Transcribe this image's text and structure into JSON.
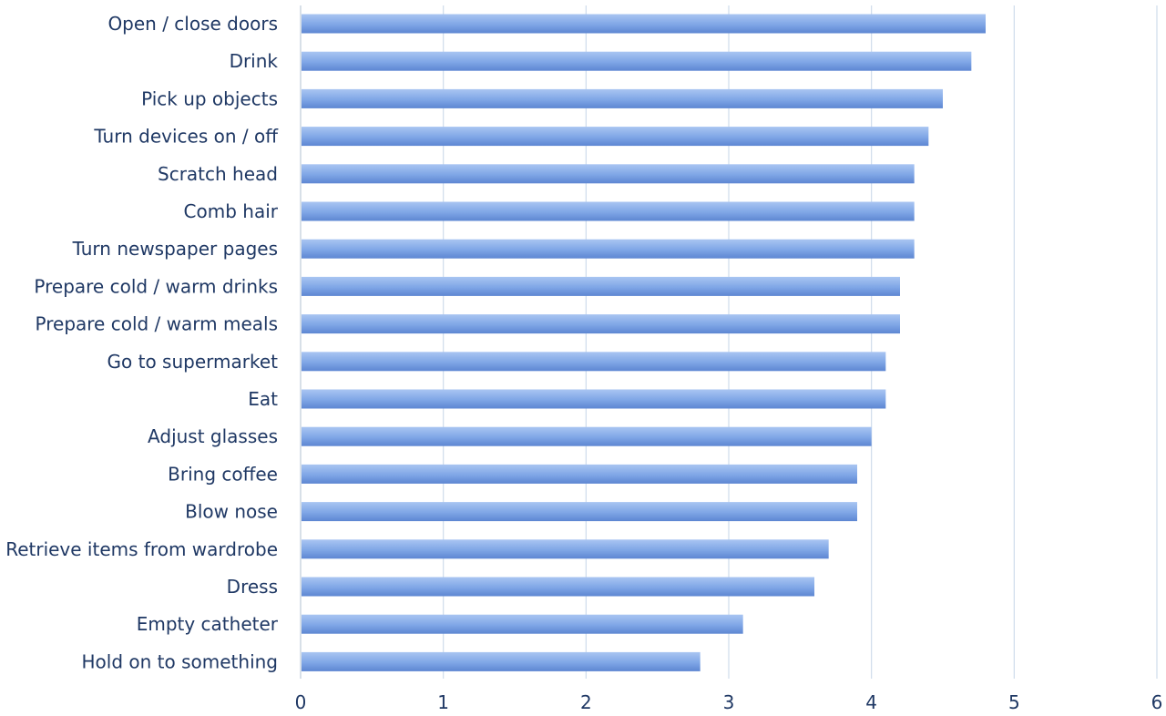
{
  "chart_data": {
    "type": "bar",
    "orientation": "horizontal",
    "title": "",
    "xlabel": "",
    "ylabel": "",
    "categories": [
      "Open / close doors",
      "Drink",
      "Pick up objects",
      "Turn devices on / off",
      "Scratch head",
      "Comb hair",
      "Turn newspaper pages",
      "Prepare cold / warm drinks",
      "Prepare cold / warm meals",
      "Go to supermarket",
      "Eat",
      "Adjust glasses",
      "Bring coffee",
      "Blow nose",
      "Retrieve items from wardrobe",
      "Dress",
      "Empty catheter",
      "Hold on to something"
    ],
    "values": [
      4.8,
      4.7,
      4.5,
      4.4,
      4.3,
      4.3,
      4.3,
      4.2,
      4.2,
      4.1,
      4.1,
      4.0,
      3.9,
      3.9,
      3.7,
      3.6,
      3.1,
      2.8
    ],
    "xlim": [
      0,
      6
    ],
    "x_ticks": [
      "0",
      "1",
      "2",
      "3",
      "4",
      "5",
      "6"
    ],
    "grid": "vertical",
    "legend": "none",
    "colors": {
      "bar_light": "#a9c5f2",
      "bar_mid": "#7fa6e6",
      "bar_dark": "#5d86d2",
      "label": "#1f3864",
      "grid": "#cfdceb"
    }
  }
}
